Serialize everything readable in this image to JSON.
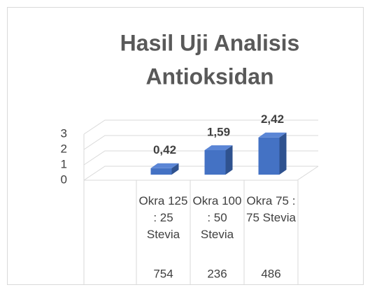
{
  "chart_data": {
    "type": "bar3d",
    "title": [
      "Hasil Uji Analisis",
      "Antioksidan"
    ],
    "categories": [
      "Okra 125 : 25 Stevia",
      "Okra 100 : 50 Stevia",
      "Okra 75 : 75 Stevia"
    ],
    "category_codes": [
      754,
      236,
      486
    ],
    "values": [
      0.42,
      1.59,
      2.42
    ],
    "value_labels": [
      "0,42",
      "1,59",
      "2,42"
    ],
    "color": "#4472c4",
    "ylim": [
      0,
      3
    ],
    "yticks": [
      0,
      1,
      2,
      3
    ],
    "grid": true
  }
}
